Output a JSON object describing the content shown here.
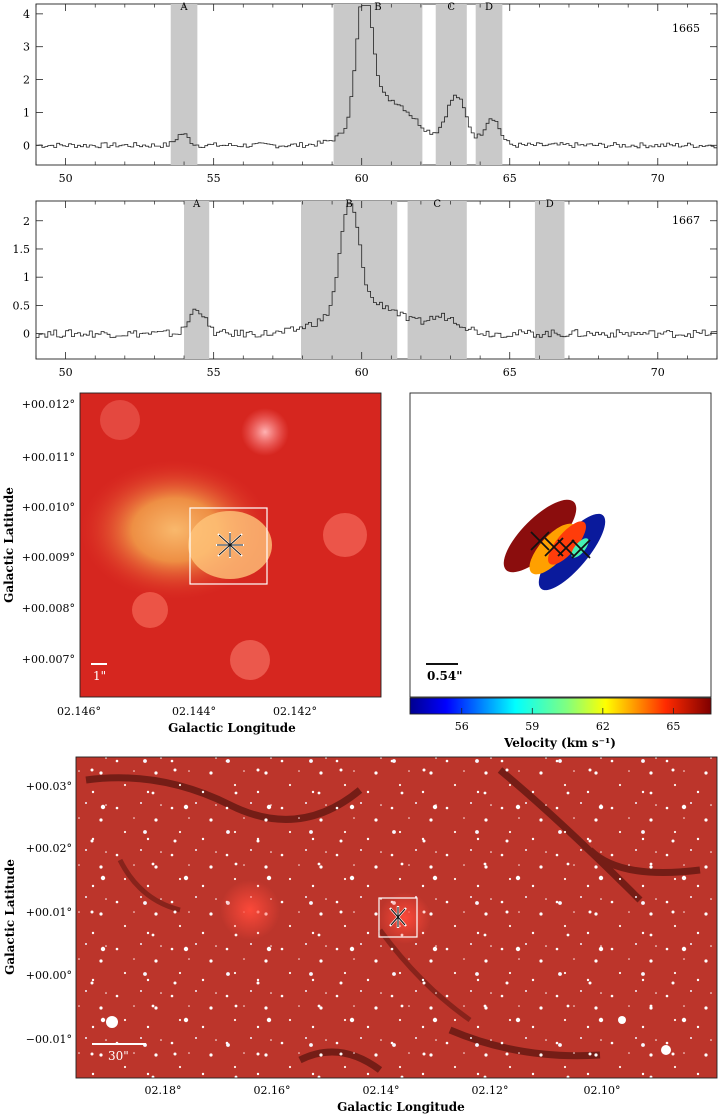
{
  "spectra": [
    {
      "line": "1665",
      "x": [
        49,
        72
      ],
      "y": [
        -0.6,
        4.3
      ],
      "xticks": [
        50,
        55,
        60,
        65,
        70
      ],
      "yticks": [
        0,
        1,
        2,
        3,
        4
      ],
      "bands": [
        {
          "label": "A",
          "from": 53.55,
          "to": 54.45
        },
        {
          "label": "B",
          "from": 59.05,
          "to": 62.05
        },
        {
          "label": "C",
          "from": 62.5,
          "to": 63.55
        },
        {
          "label": "D",
          "from": 63.85,
          "to": 64.75
        }
      ],
      "peaks": [
        {
          "center": 53.9,
          "amp": 0.35,
          "width": 0.2
        },
        {
          "center": 60.05,
          "amp": 3.9,
          "width": 0.26
        },
        {
          "center": 60.8,
          "amp": 1.4,
          "width": 0.9
        },
        {
          "center": 63.15,
          "amp": 1.45,
          "width": 0.33
        },
        {
          "center": 64.35,
          "amp": 0.85,
          "width": 0.25
        }
      ],
      "noise": 0.08
    },
    {
      "line": "1667",
      "x": [
        49,
        72
      ],
      "y": [
        -0.45,
        2.35
      ],
      "xticks": [
        50,
        55,
        60,
        65,
        70
      ],
      "yticks": [
        0,
        0.5,
        1,
        1.5,
        2
      ],
      "ytick_labels": [
        "0",
        "0.5",
        "1",
        "1.5",
        "2"
      ],
      "bands": [
        {
          "label": "A",
          "from": 54.0,
          "to": 54.85
        },
        {
          "label": "B",
          "from": 57.95,
          "to": 61.2
        },
        {
          "label": "C",
          "from": 61.55,
          "to": 63.55
        },
        {
          "label": "D",
          "from": 65.85,
          "to": 66.85
        }
      ],
      "peaks": [
        {
          "center": 54.4,
          "amp": 0.45,
          "width": 0.25
        },
        {
          "center": 59.55,
          "amp": 2.1,
          "width": 0.33
        },
        {
          "center": 60.6,
          "amp": 0.5,
          "width": 0.7
        },
        {
          "center": 62.7,
          "amp": 0.3,
          "width": 0.6
        },
        {
          "center": 58.6,
          "amp": 0.2,
          "width": 0.6
        }
      ],
      "noise": 0.07
    }
  ],
  "zoom_map": {
    "xlabel": "Galactic Longitude",
    "ylabel": "Galactic Latitude",
    "xticks": [
      "02.146°",
      "02.144°",
      "02.142°"
    ],
    "yticks": [
      "+00.012°",
      "+00.011°",
      "+00.010°",
      "+00.009°",
      "+00.008°",
      "+00.007°"
    ],
    "scalebar": "1\""
  },
  "spot_map": {
    "scalebar": "0.54\"",
    "colorbar_label": "Velocity (km s⁻¹)",
    "colorbar_ticks": [
      "56",
      "59",
      "62",
      "65"
    ],
    "colorbar_range": [
      53.8,
      66.6
    ],
    "spots": [
      {
        "color": "#8b0d0d"
      },
      {
        "color": "#ffa000"
      },
      {
        "color": "#ff3c0a"
      },
      {
        "color": "#0a1a9c"
      },
      {
        "color": "#46f0b4"
      }
    ]
  },
  "wide_map": {
    "xlabel": "Galactic Longitude",
    "ylabel": "Galactic Latitude",
    "xticks": [
      "02.18°",
      "02.16°",
      "02.14°",
      "02.12°",
      "02.10°"
    ],
    "yticks": [
      "+00.03°",
      "+00.02°",
      "+00.01°",
      "+00.00°",
      "−00.01°"
    ],
    "scalebar": "30\""
  }
}
